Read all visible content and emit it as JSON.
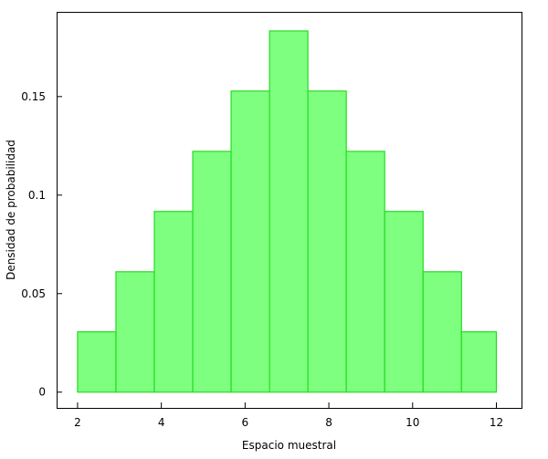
{
  "chart_data": {
    "type": "bar",
    "xlabel": "Espacio muestral",
    "ylabel": "Densidad de probabilidad",
    "xlim": [
      1.5,
      12.6
    ],
    "ylim": [
      -0.008,
      0.193
    ],
    "x_ticks": [
      2,
      4,
      6,
      8,
      10,
      12
    ],
    "x_tick_labels": [
      "2",
      "4",
      "6",
      "8",
      "10",
      "12"
    ],
    "y_ticks": [
      0,
      0.05,
      0.1,
      0.15
    ],
    "y_tick_labels": [
      "0",
      "0.05",
      "0.1",
      "0.15"
    ],
    "bins": [
      {
        "x0": 2.0,
        "x1": 2.9167,
        "value": 0.0306
      },
      {
        "x0": 2.9167,
        "x1": 3.8333,
        "value": 0.0611
      },
      {
        "x0": 3.8333,
        "x1": 4.75,
        "value": 0.0917
      },
      {
        "x0": 4.75,
        "x1": 5.6667,
        "value": 0.1222
      },
      {
        "x0": 5.6667,
        "x1": 6.5833,
        "value": 0.1528
      },
      {
        "x0": 6.5833,
        "x1": 7.5,
        "value": 0.1833
      },
      {
        "x0": 7.5,
        "x1": 8.4167,
        "value": 0.1528
      },
      {
        "x0": 8.4167,
        "x1": 9.3333,
        "value": 0.1222
      },
      {
        "x0": 9.3333,
        "x1": 10.25,
        "value": 0.0917
      },
      {
        "x0": 10.25,
        "x1": 11.1667,
        "value": 0.0611
      },
      {
        "x0": 11.1667,
        "x1": 12.0,
        "value": 0.0306
      }
    ],
    "grid": false,
    "bar_fill": "#7fff7f",
    "bar_stroke": "#22dd22"
  }
}
